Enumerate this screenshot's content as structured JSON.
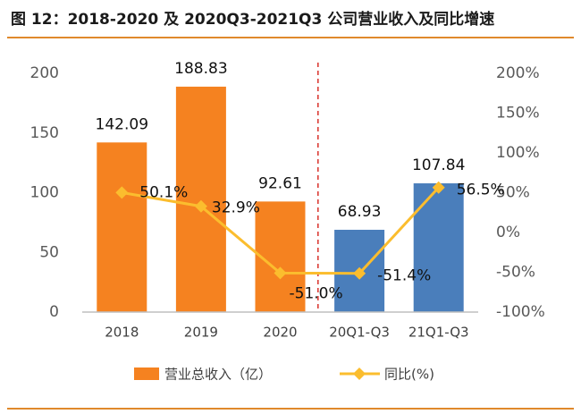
{
  "chart_data": {
    "type": "bar-line",
    "title": "图 12：2018-2020 及 2020Q3-2021Q3 公司营业收入及同比增速",
    "categories": [
      "2018",
      "2019",
      "2020",
      "20Q1-Q3",
      "21Q1-Q3"
    ],
    "series": [
      {
        "name": "营业总收入（亿）",
        "color": "#f58220",
        "point_colors": [
          "#f58220",
          "#f58220",
          "#f58220",
          "#4a7ebb",
          "#4a7ebb"
        ],
        "values": [
          142.09,
          188.83,
          92.61,
          68.93,
          107.84
        ]
      },
      {
        "name": "同比(%)",
        "color": "#fbbd2e",
        "axis": "y2",
        "values": [
          50.1,
          32.9,
          -51.0,
          -51.4,
          56.5
        ],
        "value_labels": [
          "50.1%",
          "32.9%",
          "-51.0%",
          "-51.4%",
          "56.5%"
        ]
      }
    ],
    "ylim": [
      0,
      200
    ],
    "yticks": [
      0,
      50,
      100,
      150,
      200
    ],
    "y2lim": [
      -100,
      200
    ],
    "y2ticks": [
      {
        "value": -100,
        "label": "-100%"
      },
      {
        "value": -50,
        "label": "-50%"
      },
      {
        "value": 0,
        "label": "0%"
      },
      {
        "value": 50,
        "label": "50%"
      },
      {
        "value": 100,
        "label": "100%"
      },
      {
        "value": 150,
        "label": "150%"
      },
      {
        "value": 200,
        "label": "200%"
      }
    ],
    "grid": false
  }
}
